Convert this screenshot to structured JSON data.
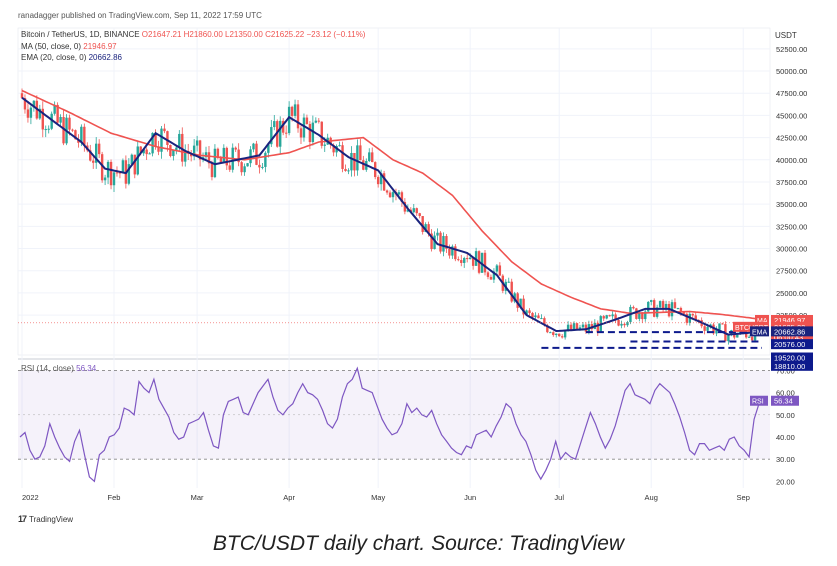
{
  "publisher": "ranadagger published on TradingView.com, Sep 11, 2022 17:59 UTC",
  "header": {
    "symbol": "Bitcoin / TetherUS, 1D, BINANCE",
    "open": "O21647.21",
    "high": "H21860.00",
    "low": "L21350.00",
    "close": "C21625.22",
    "change": "−23.12 (−0.11%)",
    "currency": "USDT"
  },
  "indicators": {
    "ma_label": "MA (50, close, 0)",
    "ma_value": "21946.97",
    "ema_label": "EMA (20, close, 0)",
    "ema_value": "20662.86"
  },
  "rsi": {
    "label": "RSI (14, close)",
    "value": "56.34",
    "tag": "RSI"
  },
  "price_tags": {
    "ma_tag": "MA",
    "ma_value": "21946.97",
    "sym_tag": "BTCUSDT",
    "sym_value": "21625.22",
    "countdown": "06:00:43",
    "ema_tag": "EMA",
    "ema_value": "20662.86",
    "level1": "20576.00",
    "level2": "19520.00",
    "level3": "18810.00"
  },
  "tradingview": "TradingView",
  "caption": "BTC/USDT daily chart. Source: TradingView",
  "colors": {
    "candle_up": "#26a69a",
    "candle_down": "#ef5350",
    "ma50": "#ef5350",
    "ema20": "#1a237e",
    "rsi": "#7e57c2",
    "support": "#0d1a8c"
  },
  "chart_data": [
    {
      "type": "candlestick",
      "title": "Bitcoin / TetherUS, 1D, BINANCE",
      "y_ticks": [
        "52500.00",
        "50000.00",
        "47500.00",
        "45000.00",
        "42500.00",
        "40000.00",
        "37500.00",
        "35000.00",
        "32500.00",
        "30000.00",
        "27500.00",
        "25000.00",
        "22500.00"
      ],
      "ylim": [
        18000,
        53500
      ],
      "x_ticks": [
        "2022",
        "Feb",
        "Mar",
        "Apr",
        "May",
        "Jun",
        "Jul",
        "Aug",
        "Sep"
      ],
      "series": [
        {
          "name": "MA (50, close, 0)",
          "points": [
            [
              0,
              47800
            ],
            [
              15,
              45500
            ],
            [
              30,
              43000
            ],
            [
              45,
              41500
            ],
            [
              60,
              40500
            ],
            [
              75,
              40000
            ],
            [
              90,
              40800
            ],
            [
              100,
              42000
            ],
            [
              115,
              42500
            ],
            [
              125,
              40000
            ],
            [
              135,
              38500
            ],
            [
              145,
              36000
            ],
            [
              155,
              32000
            ],
            [
              165,
              28500
            ],
            [
              175,
              26000
            ],
            [
              185,
              24500
            ],
            [
              195,
              23200
            ],
            [
              205,
              22700
            ],
            [
              215,
              22800
            ],
            [
              225,
              22900
            ],
            [
              235,
              22600
            ],
            [
              245,
              22200
            ],
            [
              250,
              21950
            ]
          ]
        },
        {
          "name": "EMA (20, close, 0)",
          "points": [
            [
              0,
              47000
            ],
            [
              10,
              44500
            ],
            [
              20,
              42000
            ],
            [
              28,
              39000
            ],
            [
              35,
              38500
            ],
            [
              45,
              43000
            ],
            [
              55,
              41000
            ],
            [
              65,
              39500
            ],
            [
              80,
              40500
            ],
            [
              90,
              44800
            ],
            [
              100,
              42800
            ],
            [
              110,
              40300
            ],
            [
              120,
              38800
            ],
            [
              130,
              34500
            ],
            [
              140,
              30500
            ],
            [
              150,
              29500
            ],
            [
              160,
              27000
            ],
            [
              170,
              22500
            ],
            [
              180,
              20700
            ],
            [
              190,
              20900
            ],
            [
              200,
              22000
            ],
            [
              210,
              23200
            ],
            [
              218,
              23200
            ],
            [
              228,
              21800
            ],
            [
              238,
              20300
            ],
            [
              245,
              20500
            ],
            [
              250,
              20660
            ]
          ]
        }
      ],
      "close_last": 21625.22
    },
    {
      "type": "line",
      "title": "RSI (14, close)",
      "y_ticks": [
        "70.00",
        "60.00",
        "50.00",
        "40.00",
        "30.00",
        "20.00"
      ],
      "ylim": [
        17,
        72
      ],
      "x_ticks": [
        "2022",
        "Feb",
        "Mar",
        "Apr",
        "May",
        "Jun",
        "Jul",
        "Aug",
        "Sep"
      ],
      "series": [
        {
          "name": "RSI (14, close)",
          "values": [
            40,
            42,
            34,
            30,
            31,
            36,
            46,
            40,
            35,
            31,
            29,
            38,
            43,
            32,
            22,
            20,
            32,
            34,
            40,
            41,
            44,
            53,
            52,
            50,
            65,
            62,
            60,
            66,
            57,
            53,
            49,
            42,
            39,
            40,
            46,
            47,
            48,
            51,
            43,
            36,
            35,
            50,
            56,
            57,
            58,
            51,
            50,
            55,
            60,
            63,
            66,
            58,
            52,
            50,
            53,
            55,
            60,
            64,
            60,
            59,
            57,
            52,
            46,
            44,
            48,
            58,
            64,
            66,
            71,
            62,
            61,
            60,
            54,
            48,
            44,
            41,
            42,
            46,
            55,
            51,
            53,
            50,
            49,
            52,
            46,
            41,
            38,
            35,
            33,
            32,
            36,
            35,
            41,
            42,
            43,
            40,
            45,
            49,
            55,
            53,
            46,
            41,
            38,
            32,
            25,
            21,
            25,
            30,
            38,
            30,
            33,
            31,
            30,
            37,
            44,
            51,
            46,
            40,
            35,
            39,
            45,
            53,
            61,
            64,
            59,
            58,
            57,
            55,
            61,
            64,
            62,
            60,
            55,
            49,
            42,
            34,
            32,
            37,
            37,
            34,
            35,
            36,
            34,
            39,
            40,
            36,
            34,
            31,
            48,
            55,
            56.34
          ]
        }
      ]
    }
  ]
}
